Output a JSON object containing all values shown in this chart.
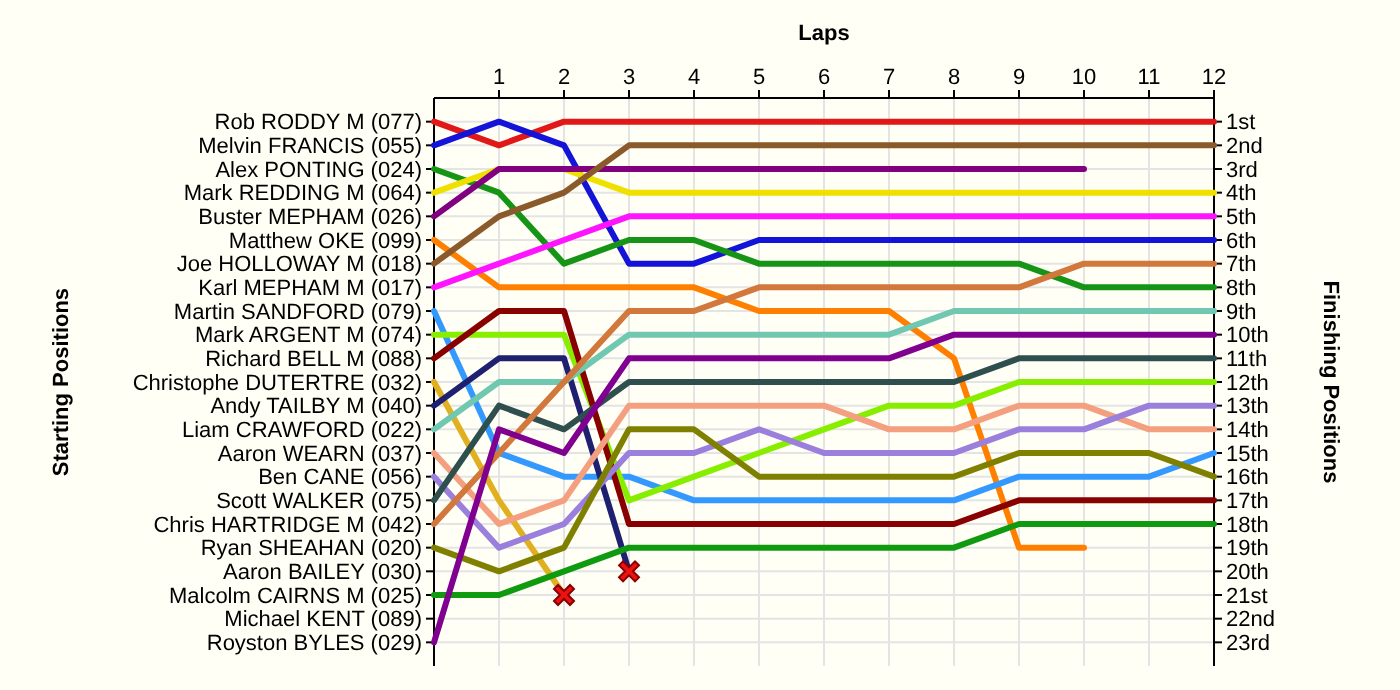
{
  "chart_data": {
    "type": "line",
    "xlabel": "Laps",
    "ylabel": "Finishing Positions",
    "grid": true,
    "x": [
      0,
      1,
      2,
      3,
      4,
      5,
      6,
      7,
      8,
      9,
      10,
      11,
      12
    ],
    "xlim": [
      0,
      12
    ],
    "xticks": [
      1,
      2,
      3,
      4,
      5,
      6,
      7,
      8,
      9,
      10,
      11,
      12
    ],
    "ylim": [
      24,
      0
    ],
    "yticks": [
      {
        "value": 1,
        "label": "1st"
      },
      {
        "value": 2,
        "label": "2nd"
      },
      {
        "value": 3,
        "label": "3rd"
      },
      {
        "value": 4,
        "label": "4th"
      },
      {
        "value": 5,
        "label": "5th"
      },
      {
        "value": 6,
        "label": "6th"
      },
      {
        "value": 7,
        "label": "7th"
      },
      {
        "value": 8,
        "label": "8th"
      },
      {
        "value": 9,
        "label": "9th"
      },
      {
        "value": 10,
        "label": "10th"
      },
      {
        "value": 11,
        "label": "11th"
      },
      {
        "value": 12,
        "label": "12th"
      },
      {
        "value": 13,
        "label": "13th"
      },
      {
        "value": 14,
        "label": "14th"
      },
      {
        "value": 15,
        "label": "15th"
      },
      {
        "value": 16,
        "label": "16th"
      },
      {
        "value": 17,
        "label": "17th"
      },
      {
        "value": 18,
        "label": "18th"
      },
      {
        "value": 19,
        "label": "19th"
      },
      {
        "value": 20,
        "label": "20th"
      },
      {
        "value": 21,
        "label": "21st"
      },
      {
        "value": 22,
        "label": "22nd"
      },
      {
        "value": 23,
        "label": "23rd"
      }
    ],
    "annotations": [
      "Starting Positions",
      "Rob RODDY M (077)",
      "Melvin FRANCIS (055)",
      "Alex PONTING (024)",
      "Mark REDDING M (064)",
      "Buster MEPHAM (026)",
      "Matthew OKE (099)",
      "Joe HOLLOWAY M (018)",
      "Karl MEPHAM M (017)",
      "Martin SANDFORD (079)",
      "Mark ARGENT M (074)",
      "Richard BELL M (088)",
      "Christophe DUTERTRE (032)",
      "Andy TAILBY M (040)",
      "Liam CRAWFORD (022)",
      "Aaron WEARN (037)",
      "Ben CANE (056)",
      "Scott WALKER (075)",
      "Chris HARTRIDGE M (042)",
      "Ryan SHEAHAN (020)",
      "Aaron BAILEY (030)",
      "Malcolm CAIRNS M (025)",
      "Michael KENT (089)",
      "Royston BYLES (029)"
    ],
    "series": [
      {
        "color": "#e01818",
        "values": [
          1,
          2,
          1,
          1,
          1,
          1,
          1,
          1,
          1,
          1,
          1,
          1,
          1
        ]
      },
      {
        "color": "#1414d8",
        "values": [
          2,
          1,
          2,
          7,
          7,
          6,
          6,
          6,
          6,
          6,
          6,
          6,
          6
        ]
      },
      {
        "color": "#169416",
        "values": [
          3,
          4,
          7,
          6,
          6,
          7,
          7,
          7,
          7,
          7,
          8,
          8,
          8
        ]
      },
      {
        "color": "#f0e000",
        "values": [
          4,
          3,
          3,
          4,
          4,
          4,
          4,
          4,
          4,
          4,
          4,
          4,
          4
        ]
      },
      {
        "color": "#800080",
        "values": [
          5,
          3,
          3,
          3,
          3,
          3,
          3,
          3,
          3,
          3,
          3,
          null,
          null
        ]
      },
      {
        "color": "#ff8000",
        "values": [
          6,
          8,
          8,
          8,
          8,
          9,
          9,
          9,
          11,
          19,
          19,
          null,
          null
        ]
      },
      {
        "color": "#8b5a2b",
        "values": [
          7,
          5,
          4,
          2,
          2,
          2,
          2,
          2,
          2,
          2,
          2,
          2,
          2
        ]
      },
      {
        "color": "#ff14ff",
        "values": [
          8,
          7,
          6,
          5,
          5,
          5,
          5,
          5,
          5,
          5,
          5,
          5,
          5
        ]
      },
      {
        "color": "#3399ff",
        "values": [
          9,
          15,
          16,
          16,
          17,
          17,
          17,
          17,
          17,
          16,
          16,
          16,
          15
        ]
      },
      {
        "color": "#88ee00",
        "values": [
          10,
          10,
          10,
          17,
          16,
          15,
          14,
          13,
          13,
          12,
          12,
          12,
          12
        ]
      },
      {
        "color": "#880000",
        "values": [
          11,
          9,
          9,
          18,
          18,
          18,
          18,
          18,
          18,
          17,
          17,
          17,
          17
        ]
      },
      {
        "color": "#e0b020",
        "values": [
          12,
          17,
          21,
          null,
          null,
          null,
          null,
          null,
          null,
          null,
          null,
          null,
          null
        ]
      },
      {
        "color": "#202070",
        "values": [
          13,
          11,
          11,
          20,
          null,
          null,
          null,
          null,
          null,
          null,
          null,
          null,
          null
        ]
      },
      {
        "color": "#70c8b0",
        "values": [
          14,
          12,
          12,
          10,
          10,
          10,
          10,
          10,
          9,
          9,
          9,
          9,
          9
        ]
      },
      {
        "color": "#f4a080",
        "values": [
          15,
          18,
          17,
          13,
          13,
          13,
          13,
          14,
          14,
          13,
          13,
          14,
          14
        ]
      },
      {
        "color": "#9a80dc",
        "values": [
          16,
          19,
          18,
          15,
          15,
          14,
          15,
          15,
          15,
          14,
          14,
          13,
          13
        ]
      },
      {
        "color": "#2f4f4f",
        "values": [
          17,
          13,
          14,
          12,
          12,
          12,
          12,
          12,
          12,
          11,
          11,
          11,
          11
        ]
      },
      {
        "color": "#d2783c",
        "values": [
          18,
          15,
          12,
          9,
          9,
          8,
          8,
          8,
          8,
          8,
          7,
          7,
          7
        ]
      },
      {
        "color": "#808000",
        "values": [
          19,
          20,
          19,
          14,
          14,
          16,
          16,
          16,
          16,
          15,
          15,
          15,
          16
        ]
      },
      {
        "color": "#109a10",
        "values": [
          21,
          21,
          20,
          19,
          19,
          19,
          19,
          19,
          19,
          18,
          18,
          18,
          18
        ]
      },
      {
        "color": "#800090",
        "values": [
          23,
          14,
          15,
          11,
          11,
          11,
          11,
          11,
          10,
          10,
          10,
          10,
          10
        ]
      },
      {
        "type": "scatter",
        "marker": "cross",
        "color": "#ee1111",
        "x": [
          2,
          3
        ],
        "values": [
          21,
          20
        ]
      }
    ]
  }
}
